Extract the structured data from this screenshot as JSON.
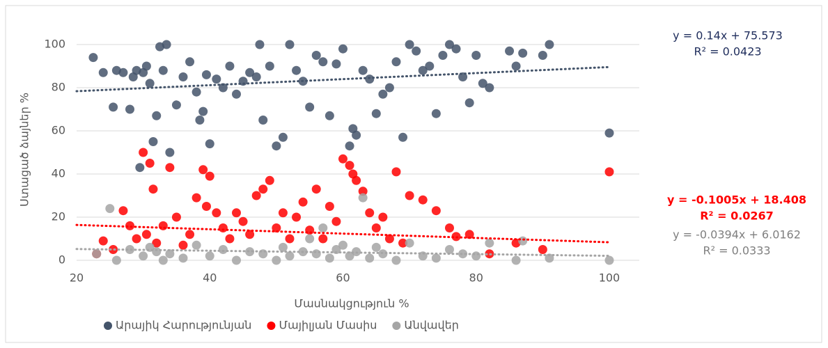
{
  "chart_data": {
    "type": "scatter",
    "xlabel": "Մասնակցություն %",
    "ylabel": "Ստացած ձայներ %",
    "xlim": [
      20,
      104.5
    ],
    "xticks": [
      20,
      40,
      60,
      80,
      100
    ],
    "ylim": [
      0,
      110
    ],
    "yticks": [
      0,
      20,
      40,
      60,
      80,
      100
    ],
    "grid": true,
    "legend": "bottom",
    "series": [
      {
        "name": "Արայիկ Հարությունյան",
        "color": "#44546a",
        "x": [
          22.5,
          24,
          25.5,
          26,
          27,
          28,
          28.5,
          29,
          29.5,
          30,
          30.5,
          31,
          31.5,
          32,
          32.5,
          33,
          33.5,
          34,
          35,
          36,
          37,
          38,
          38.5,
          39,
          39.5,
          40,
          41,
          42,
          43,
          44,
          45,
          46,
          47,
          47.5,
          48,
          49,
          50,
          51,
          52,
          53,
          54,
          55,
          56,
          57,
          58,
          59,
          60,
          61,
          61.5,
          62,
          63,
          64,
          65,
          66,
          67,
          68,
          69,
          70,
          71,
          72,
          73,
          74,
          75,
          76,
          77,
          78,
          79,
          80,
          81,
          82,
          85,
          86,
          87,
          90,
          91,
          100
        ],
        "values": [
          94,
          87,
          71,
          88,
          87,
          70,
          85,
          88,
          43,
          87,
          90,
          82,
          55,
          67,
          99,
          88,
          100,
          50,
          72,
          85,
          92,
          78,
          65,
          69,
          86,
          54,
          84,
          80,
          90,
          77,
          83,
          87,
          85,
          100,
          65,
          90,
          53,
          57,
          100,
          88,
          83,
          71,
          95,
          92,
          67,
          91,
          98,
          53,
          61,
          58,
          88,
          84,
          68,
          77,
          80,
          92,
          57,
          100,
          97,
          88,
          90,
          68,
          95,
          100,
          98,
          85,
          73,
          95,
          82,
          80,
          97,
          90,
          96,
          95,
          100,
          59
        ],
        "trendline": {
          "slope": 0.14,
          "intercept": 75.573,
          "label": "y = 0.14x + 75.573",
          "r2_label": "R² = 0.0423"
        }
      },
      {
        "name": "Մայիլյան Մասիս",
        "color": "#ff0000",
        "x": [
          23,
          24,
          25.5,
          27,
          28,
          29,
          30,
          30.5,
          31,
          31.5,
          32,
          33,
          34,
          35,
          36,
          37,
          38,
          39,
          39.5,
          40,
          41,
          42,
          43,
          44,
          45,
          46,
          47,
          48,
          49,
          50,
          51,
          52,
          53,
          54,
          55,
          56,
          57,
          58,
          59,
          60,
          61,
          61.5,
          62,
          63,
          64,
          65,
          66,
          67,
          68,
          69,
          70,
          72,
          74,
          76,
          77,
          79,
          82,
          86,
          90,
          100
        ],
        "values": [
          3,
          9,
          5,
          23,
          16,
          10,
          50,
          12,
          45,
          33,
          8,
          16,
          43,
          20,
          7,
          12,
          29,
          42,
          25,
          39,
          22,
          15,
          10,
          22,
          18,
          12,
          30,
          33,
          37,
          15,
          22,
          10,
          20,
          27,
          14,
          33,
          10,
          25,
          18,
          47,
          44,
          40,
          37,
          32,
          22,
          15,
          20,
          10,
          41,
          8,
          30,
          28,
          23,
          15,
          11,
          12,
          3,
          8,
          5,
          41
        ],
        "trendline": {
          "slope": -0.1005,
          "intercept": 18.408,
          "label": "y = -0.1005x + 18.408",
          "r2_label": "R² = 0.0267"
        }
      },
      {
        "name": "Անվավեր",
        "color": "#a5a5a5",
        "x": [
          23,
          25,
          26,
          28,
          30,
          31,
          32,
          33,
          34,
          36,
          38,
          40,
          42,
          44,
          46,
          48,
          50,
          51,
          52,
          54,
          55,
          56,
          57,
          58,
          59,
          60,
          61,
          62,
          63,
          64,
          65,
          66,
          68,
          70,
          72,
          74,
          76,
          78,
          80,
          82,
          86,
          87,
          91,
          100
        ],
        "values": [
          3,
          24,
          0,
          5,
          2,
          6,
          4,
          0,
          3,
          1,
          7,
          2,
          5,
          0,
          4,
          3,
          0,
          6,
          2,
          4,
          10,
          3,
          15,
          1,
          5,
          7,
          2,
          4,
          29,
          1,
          6,
          3,
          0,
          8,
          2,
          1,
          5,
          3,
          2,
          8,
          0,
          9,
          1,
          0
        ],
        "trendline": {
          "slope": -0.0394,
          "intercept": 6.0162,
          "label": "y = -0.0394x + 6.0162",
          "r2_label": "R² = 0.0333"
        }
      }
    ]
  }
}
